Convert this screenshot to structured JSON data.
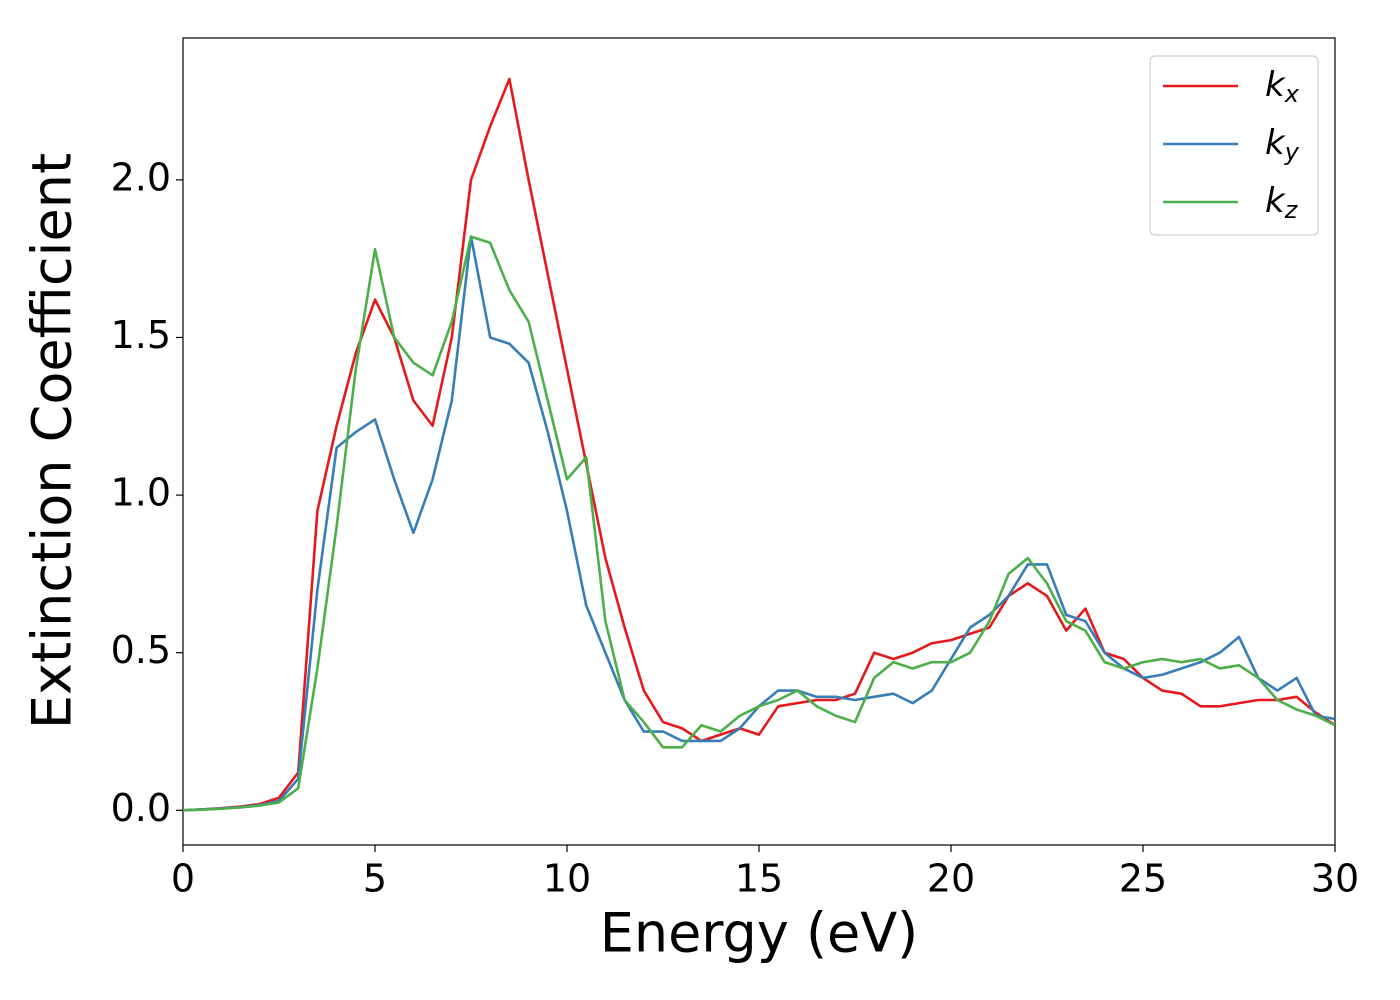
{
  "chart_data": {
    "type": "line",
    "xlabel": "Energy (eV)",
    "ylabel": "Extinction Coefficient",
    "x": [
      0,
      0.5,
      1,
      1.5,
      2,
      2.5,
      3,
      3.5,
      4,
      4.5,
      5,
      5.5,
      6,
      6.5,
      7,
      7.5,
      8,
      8.5,
      9,
      9.5,
      10,
      10.5,
      11,
      11.5,
      12,
      12.5,
      13,
      13.5,
      14,
      14.5,
      15,
      15.5,
      16,
      16.5,
      17,
      17.5,
      18,
      18.5,
      19,
      19.5,
      20,
      20.5,
      21,
      21.5,
      22,
      22.5,
      23,
      23.5,
      24,
      24.5,
      25,
      25.5,
      26,
      26.5,
      27,
      27.5,
      28,
      28.5,
      29,
      29.5,
      30
    ],
    "series": [
      {
        "name": "kx",
        "color": "#e41a1c",
        "values": [
          0,
          0.003,
          0.007,
          0.012,
          0.02,
          0.04,
          0.12,
          0.95,
          1.22,
          1.45,
          1.62,
          1.5,
          1.3,
          1.22,
          1.5,
          2.0,
          2.17,
          2.32,
          2.0,
          1.7,
          1.4,
          1.1,
          0.8,
          0.58,
          0.38,
          0.28,
          0.26,
          0.22,
          0.24,
          0.26,
          0.24,
          0.33,
          0.34,
          0.35,
          0.35,
          0.37,
          0.5,
          0.48,
          0.5,
          0.53,
          0.54,
          0.56,
          0.58,
          0.68,
          0.72,
          0.68,
          0.57,
          0.64,
          0.5,
          0.48,
          0.42,
          0.38,
          0.37,
          0.33,
          0.33,
          0.34,
          0.35,
          0.35,
          0.36,
          0.31,
          0.27
        ]
      },
      {
        "name": "ky",
        "color": "#377eb8",
        "values": [
          0,
          0.003,
          0.006,
          0.01,
          0.017,
          0.03,
          0.1,
          0.7,
          1.15,
          1.2,
          1.24,
          1.05,
          0.88,
          1.05,
          1.3,
          1.82,
          1.5,
          1.48,
          1.42,
          1.2,
          0.95,
          0.65,
          0.5,
          0.35,
          0.25,
          0.25,
          0.22,
          0.22,
          0.22,
          0.26,
          0.33,
          0.38,
          0.38,
          0.36,
          0.36,
          0.35,
          0.36,
          0.37,
          0.34,
          0.38,
          0.48,
          0.58,
          0.62,
          0.68,
          0.78,
          0.78,
          0.62,
          0.6,
          0.5,
          0.45,
          0.42,
          0.43,
          0.45,
          0.47,
          0.5,
          0.55,
          0.42,
          0.38,
          0.42,
          0.3,
          0.29
        ]
      },
      {
        "name": "kz",
        "color": "#4daf4a",
        "values": [
          0,
          0.002,
          0.005,
          0.009,
          0.015,
          0.025,
          0.07,
          0.45,
          0.9,
          1.4,
          1.78,
          1.5,
          1.42,
          1.38,
          1.55,
          1.82,
          1.8,
          1.65,
          1.55,
          1.3,
          1.05,
          1.12,
          0.6,
          0.35,
          0.28,
          0.2,
          0.2,
          0.27,
          0.25,
          0.3,
          0.33,
          0.35,
          0.38,
          0.33,
          0.3,
          0.28,
          0.42,
          0.47,
          0.45,
          0.47,
          0.47,
          0.5,
          0.6,
          0.75,
          0.8,
          0.72,
          0.6,
          0.57,
          0.47,
          0.45,
          0.47,
          0.48,
          0.47,
          0.48,
          0.45,
          0.46,
          0.42,
          0.35,
          0.32,
          0.3,
          0.27
        ]
      }
    ],
    "xlim": [
      0,
      30
    ],
    "ylim": [
      -0.11,
      2.45
    ],
    "xticks": [
      0,
      5,
      10,
      15,
      20,
      25,
      30
    ],
    "yticks": [
      {
        "value": 0,
        "label": "0.0"
      },
      0.5,
      {
        "value": 1,
        "label": "1.0"
      },
      1.5,
      {
        "value": 2,
        "label": "2.0"
      }
    ],
    "grid": false,
    "legend": "upper right"
  }
}
